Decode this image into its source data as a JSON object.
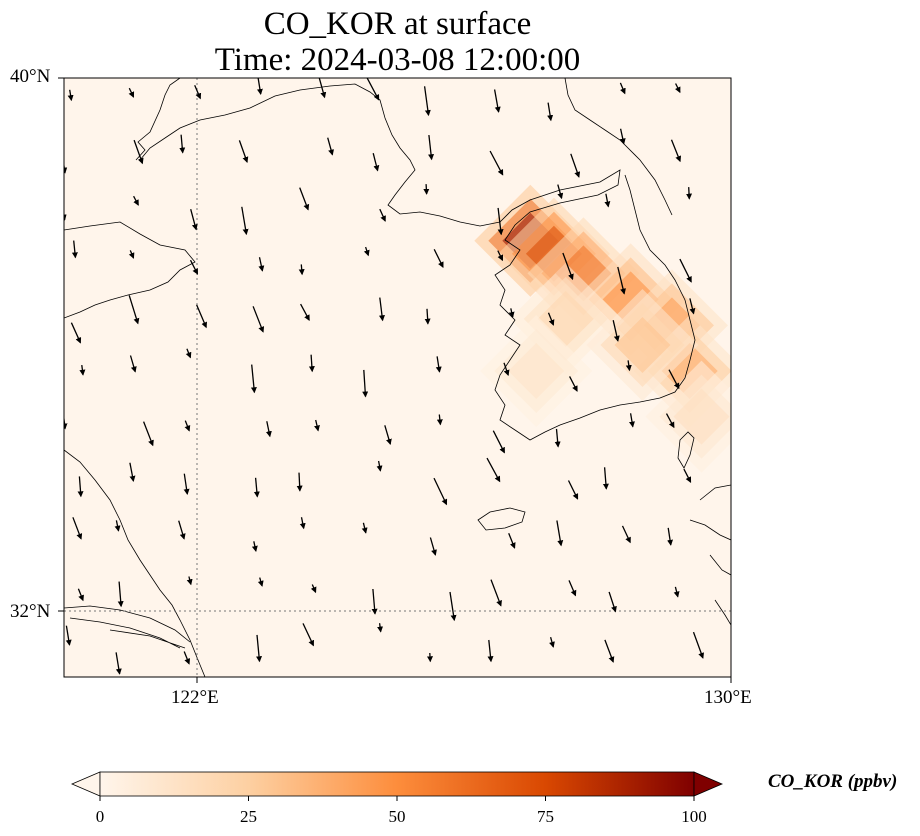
{
  "title": {
    "line1": "CO_KOR at surface",
    "line2": "Time: 2024-03-08 12:00:00"
  },
  "map": {
    "variable": "CO_KOR",
    "units": "ppbv",
    "lat_range": [
      30.8,
      40
    ],
    "lon_range": [
      118.7,
      130
    ],
    "lat_ticks": [
      "40°N",
      "32°N"
    ],
    "lon_ticks": [
      "122°E",
      "130°E"
    ],
    "gridlines": {
      "lat": 32,
      "lon": 122
    }
  },
  "colorbar": {
    "label": "CO_KOR (ppbv)",
    "min": 0,
    "max": 100,
    "ticks": [
      "0",
      "25",
      "50",
      "75",
      "100"
    ],
    "extend": "both",
    "cmap": [
      "#fff5eb",
      "#fdd0a2",
      "#fd8d3c",
      "#d94801",
      "#7f0000"
    ]
  },
  "chart_data": {
    "type": "heatmap",
    "title": "CO_KOR at surface / Time: 2024-03-08 12:00:00",
    "xlabel": "",
    "ylabel": "",
    "plume_points": [
      {
        "lon": 126.6,
        "lat": 37.5,
        "value": 95
      },
      {
        "lon": 127.0,
        "lat": 37.3,
        "value": 75
      },
      {
        "lon": 127.5,
        "lat": 37.0,
        "value": 60
      },
      {
        "lon": 128.3,
        "lat": 36.6,
        "value": 50
      },
      {
        "lon": 129.0,
        "lat": 36.2,
        "value": 45
      },
      {
        "lon": 129.3,
        "lat": 35.5,
        "value": 40
      },
      {
        "lon": 128.5,
        "lat": 35.9,
        "value": 30
      },
      {
        "lon": 127.2,
        "lat": 36.3,
        "value": 20
      },
      {
        "lon": 126.7,
        "lat": 35.5,
        "value": 12
      },
      {
        "lon": 129.5,
        "lat": 34.8,
        "value": 15
      }
    ],
    "wind_direction": "northerly to north-northwesterly"
  }
}
